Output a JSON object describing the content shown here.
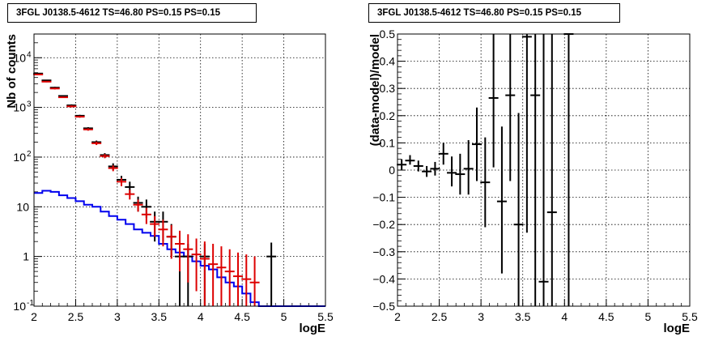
{
  "chart_data": [
    {
      "type": "line",
      "title": "3FGL J0138.5-4612 TS=46.80 PS=0.15 PS=0.15",
      "xlabel": "logE",
      "ylabel": "Nb of counts",
      "xlim": [
        2,
        5.5
      ],
      "ylim": [
        0.1,
        30000
      ],
      "yscale": "log",
      "grid": true,
      "xticks": [
        "2",
        "2.5",
        "3",
        "3.5",
        "4",
        "4.5",
        "5",
        "5.5"
      ],
      "yticks": [
        {
          "v": 0.1,
          "label": "10",
          "exp": "-1"
        },
        {
          "v": 1,
          "label": "1",
          "exp": ""
        },
        {
          "v": 10,
          "label": "10",
          "exp": ""
        },
        {
          "v": 100,
          "label": "10",
          "exp": "2"
        },
        {
          "v": 1000,
          "label": "10",
          "exp": "3"
        },
        {
          "v": 10000,
          "label": "10",
          "exp": "4"
        }
      ],
      "series": [
        {
          "color": "#0000ee",
          "style": "step",
          "bin_edges": [
            2.0,
            2.1,
            2.2,
            2.3,
            2.4,
            2.5,
            2.6,
            2.7,
            2.8,
            2.9,
            3.0,
            3.1,
            3.2,
            3.3,
            3.4,
            3.5,
            3.6,
            3.7,
            3.8,
            3.9,
            4.0,
            4.1,
            4.2,
            4.3,
            4.4,
            4.5,
            4.6,
            4.7,
            4.8,
            4.9,
            5.0,
            5.1,
            5.2,
            5.3,
            5.4,
            5.5
          ],
          "values": [
            19,
            21,
            20,
            17,
            15,
            13,
            11,
            10,
            8,
            6.5,
            5.5,
            4.5,
            3.5,
            3.0,
            2.6,
            1.8,
            1.4,
            1.2,
            1.0,
            0.8,
            0.65,
            0.55,
            0.38,
            0.3,
            0.25,
            0.18,
            0.12,
            0.1,
            0.1,
            0.1,
            0.1,
            0.1,
            0.1,
            0.1,
            0.1
          ]
        },
        {
          "color": "#000000",
          "style": "errorbar",
          "x": [
            2.05,
            2.15,
            2.25,
            2.35,
            2.45,
            2.55,
            2.65,
            2.75,
            2.85,
            2.95,
            3.05,
            3.15,
            3.25,
            3.35,
            3.45,
            3.55,
            3.65,
            3.75,
            3.85,
            4.05,
            4.85
          ],
          "y": [
            4800,
            3500,
            2500,
            1700,
            1100,
            680,
            380,
            200,
            110,
            65,
            35,
            25,
            12,
            10,
            5,
            5,
            2.5,
            1,
            1,
            1,
            1
          ],
          "ylo": [
            4700,
            3400,
            2400,
            1650,
            1050,
            650,
            360,
            185,
            100,
            55,
            28,
            18,
            8,
            6,
            2,
            2,
            1,
            0.1,
            0.1,
            0.1,
            0.1
          ],
          "yhi": [
            4900,
            3600,
            2600,
            1750,
            1150,
            710,
            400,
            215,
            120,
            75,
            42,
            32,
            16,
            14,
            8,
            8,
            4.5,
            1.8,
            1.8,
            1.8,
            1.9
          ]
        },
        {
          "color": "#dd0000",
          "style": "errorbar",
          "x": [
            2.05,
            2.15,
            2.25,
            2.35,
            2.45,
            2.55,
            2.65,
            2.75,
            2.85,
            2.95,
            3.05,
            3.15,
            3.25,
            3.35,
            3.45,
            3.55,
            3.65,
            3.75,
            3.85,
            3.95,
            4.05,
            4.15,
            4.25,
            4.35,
            4.45,
            4.55,
            4.65
          ],
          "y": [
            4600,
            3300,
            2400,
            1600,
            1050,
            650,
            360,
            190,
            105,
            60,
            32,
            18,
            11,
            7,
            4.5,
            3.5,
            2.5,
            1.8,
            1.4,
            1.1,
            0.9,
            0.7,
            0.6,
            0.5,
            0.4,
            0.35,
            0.3
          ],
          "ylo": [
            4500,
            3200,
            2300,
            1550,
            1000,
            620,
            340,
            175,
            95,
            52,
            26,
            14,
            8,
            4.5,
            2.5,
            1.6,
            0.9,
            0.5,
            0.3,
            0.2,
            0.1,
            0.1,
            0.1,
            0.1,
            0.1,
            0.1,
            0.1
          ],
          "yhi": [
            4700,
            3400,
            2500,
            1650,
            1100,
            680,
            380,
            205,
            115,
            68,
            38,
            22,
            14,
            9.5,
            6.5,
            5.5,
            4.3,
            3.3,
            2.8,
            2.3,
            2.0,
            1.8,
            1.6,
            1.4,
            1.2,
            1.1,
            1.0
          ]
        }
      ]
    },
    {
      "type": "scatter",
      "title": "3FGL J0138.5-4612 TS=46.80 PS=0.15 PS=0.15",
      "xlabel": "logE",
      "ylabel": "(data-model)/model",
      "xlim": [
        2,
        5.5
      ],
      "ylim": [
        -0.5,
        0.5
      ],
      "grid": true,
      "xticks": [
        "2",
        "2.5",
        "3",
        "3.5",
        "4",
        "4.5",
        "5",
        "5.5"
      ],
      "yticks": [
        "−0.5",
        "−0.4",
        "−0.3",
        "−0.2",
        "−0.1",
        "0",
        "0.1",
        "0.2",
        "0.3",
        "0.4",
        "0.5"
      ],
      "series": [
        {
          "color": "#000000",
          "style": "errorbar",
          "x": [
            2.05,
            2.15,
            2.25,
            2.35,
            2.45,
            2.55,
            2.65,
            2.75,
            2.85,
            2.95,
            3.05,
            3.15,
            3.25,
            3.35,
            3.45,
            3.55,
            3.65,
            3.75,
            3.85,
            4.05
          ],
          "y": [
            0.02,
            0.035,
            0.015,
            -0.005,
            0.005,
            0.06,
            -0.01,
            -0.015,
            0.005,
            0.095,
            -0.045,
            0.265,
            -0.115,
            0.275,
            -0.2,
            0.49,
            0.275,
            -0.41,
            -0.155,
            0.5
          ],
          "ylo": [
            0.0,
            0.02,
            -0.005,
            -0.025,
            -0.02,
            0.02,
            -0.06,
            -0.09,
            -0.09,
            -0.04,
            -0.21,
            0.01,
            -0.38,
            -0.04,
            -0.5,
            -0.23,
            -0.5,
            -0.5,
            -0.5,
            -0.5
          ],
          "yhi": [
            0.04,
            0.055,
            0.035,
            0.015,
            0.03,
            0.1,
            0.05,
            0.06,
            0.11,
            0.23,
            0.12,
            0.5,
            0.16,
            0.5,
            0.21,
            0.5,
            0.5,
            0.5,
            0.5,
            0.5
          ]
        }
      ]
    }
  ]
}
